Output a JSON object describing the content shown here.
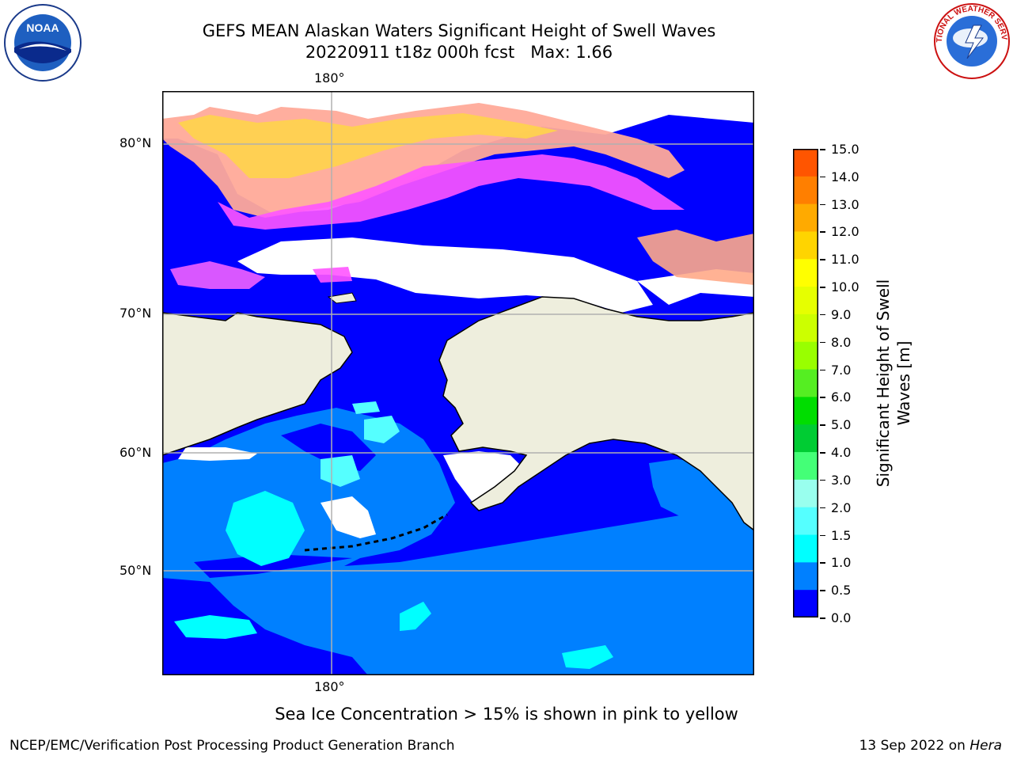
{
  "header": {
    "title_line1": "GEFS MEAN Alaskan Waters Significant Height of Swell Waves",
    "title_line2": "20220911 t18z 000h fcst   Max: 1.66"
  },
  "logos": {
    "left": {
      "name": "noaa-logo",
      "text": "NOAA"
    },
    "right": {
      "name": "nws-logo",
      "text": "NATIONAL WEATHER SERVICE"
    }
  },
  "map": {
    "lon_labels_top": [
      "180°"
    ],
    "lon_labels_bottom": [
      "180°"
    ],
    "lat_labels": [
      "80°N",
      "70°N",
      "60°N",
      "50°N"
    ],
    "colors": {
      "ocean_dark": "#0000ff",
      "ocean_mid": "#0080ff",
      "swell_cyan": "#00ffff",
      "swell_light": "#40ffff",
      "land": "#eeeedd",
      "ice_pink": "#ff55ff",
      "ice_peach": "#ffaa88",
      "ice_yellow": "#ffdd33",
      "grid": "#b0b0b0"
    }
  },
  "colorbar": {
    "title": "Significant Height of Swell Waves [m]",
    "ticks": [
      "15.0",
      "14.0",
      "13.0",
      "12.0",
      "11.0",
      "10.0",
      "9.0",
      "8.0",
      "7.0",
      "6.0",
      "5.0",
      "4.0",
      "3.0",
      "2.0",
      "1.5",
      "1.0",
      "0.5",
      "0.0"
    ],
    "colors_top_to_bottom": [
      "#ff0000",
      "#ff2a00",
      "#ff5500",
      "#ff7f00",
      "#ffaa00",
      "#ffd400",
      "#ffff00",
      "#e6ff00",
      "#ccff00",
      "#99ff00",
      "#55ee22",
      "#00dd00",
      "#00cc33",
      "#44ff77",
      "#99ffee",
      "#55ffff",
      "#00ffff",
      "#0080ff",
      "#0000ff"
    ]
  },
  "caption": "Sea Ice Concentration > 15% is shown in pink to yellow",
  "footer": {
    "left": "NCEP/EMC/Verification Post Processing Product Generation Branch",
    "right_date": "13 Sep 2022 on ",
    "right_host": "Hera"
  }
}
